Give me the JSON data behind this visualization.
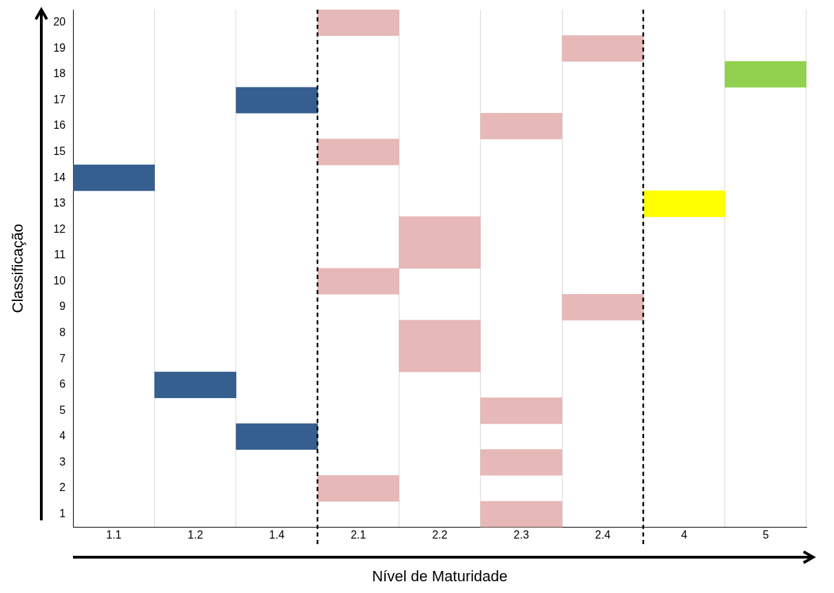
{
  "chart_data": {
    "type": "bar",
    "xlabel": "Nível de Maturidade",
    "ylabel": "Classificação",
    "categories": [
      "1.1",
      "1.2",
      "1.4",
      "2.1",
      "2.2",
      "2.3",
      "2.4",
      "4",
      "5"
    ],
    "series": [
      {
        "colors": [
          "#355f8f",
          "#355f8f",
          "#355f8f",
          "#e6b8b7",
          "#e6b8b7",
          "#e6b8b7",
          "#e6b8b7",
          "#ffff00",
          "#92d050"
        ],
        "base": [
          13.5,
          5.5,
          3.5,
          1.5,
          6.5,
          0.5,
          8.5,
          12.5,
          17.5
        ],
        "values": [
          1,
          1,
          1,
          1,
          1,
          1,
          1,
          1,
          1
        ]
      },
      {
        "colors": [
          null,
          null,
          "#355f8f",
          "#e6b8b7",
          "#e6b8b7",
          "#e6b8b7",
          "#e6b8b7",
          null,
          null
        ],
        "base": [
          null,
          null,
          16.5,
          9.5,
          7.5,
          2.5,
          18.5,
          null,
          null
        ],
        "values": [
          null,
          null,
          1,
          1,
          1,
          1,
          1,
          null,
          null
        ]
      },
      {
        "colors": [
          null,
          null,
          null,
          "#e6b8b7",
          "#e6b8b7",
          "#e6b8b7",
          null,
          null,
          null
        ],
        "base": [
          null,
          null,
          null,
          14.5,
          10.5,
          4.5,
          null,
          null,
          null
        ],
        "values": [
          null,
          null,
          null,
          1,
          1,
          1,
          null,
          null,
          null
        ]
      },
      {
        "colors": [
          null,
          null,
          null,
          "#e6b8b7",
          "#e6b8b7",
          "#e6b8b7",
          null,
          null,
          null
        ],
        "base": [
          null,
          null,
          null,
          19.5,
          11.5,
          15.5,
          null,
          null,
          null
        ],
        "values": [
          null,
          null,
          null,
          1,
          1,
          1,
          null,
          null,
          null
        ]
      }
    ],
    "ylim": [
      0.5,
      20.5
    ],
    "yticks": [
      1,
      2,
      3,
      4,
      5,
      6,
      7,
      8,
      9,
      10,
      11,
      12,
      13,
      14,
      15,
      16,
      17,
      18,
      19,
      20
    ],
    "grid": "x",
    "legend": false
  }
}
